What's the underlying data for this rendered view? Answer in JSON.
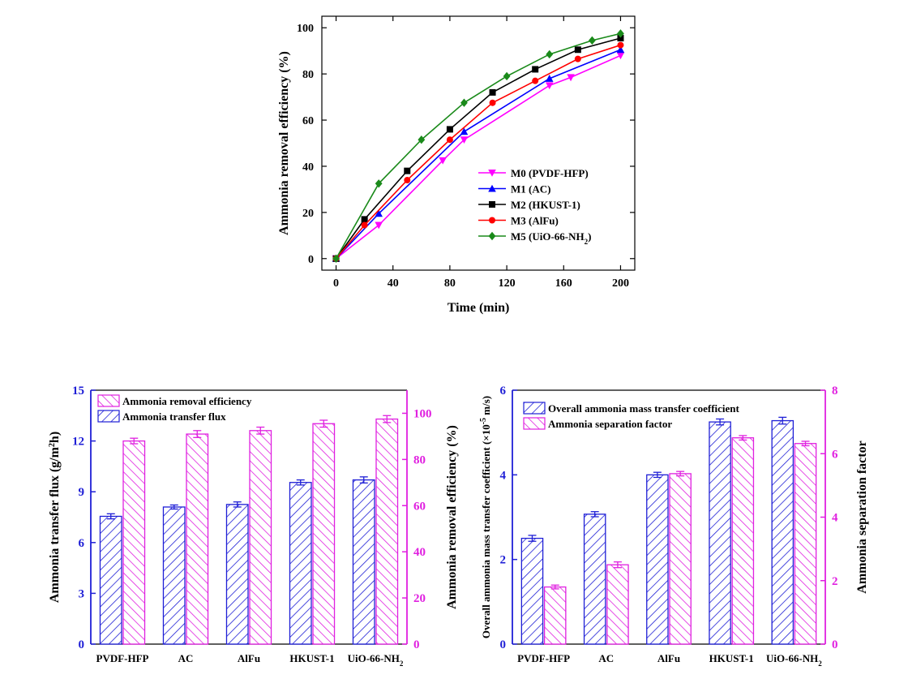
{
  "colors": {
    "M0": "#ff00ff",
    "M1": "#0000ff",
    "M2": "#000000",
    "M3": "#ff0000",
    "M5": "#1a8a1a",
    "blue": "#1f1fd6",
    "magenta": "#e020e0"
  },
  "chart_data": [
    {
      "type": "line",
      "xlabel": "Time (min)",
      "ylabel": "Ammonia removal efficiency (%)",
      "xlim": [
        -10,
        210
      ],
      "ylim": [
        -5,
        105
      ],
      "xticks": [
        0,
        40,
        80,
        120,
        160,
        200
      ],
      "yticks": [
        0,
        20,
        40,
        60,
        80,
        100
      ],
      "legend_position": "lower-right",
      "series": [
        {
          "key": "M0",
          "name": "M0 (PVDF-HFP)",
          "marker": "triangle-down",
          "x": [
            0,
            30,
            75,
            90,
            150,
            165,
            200
          ],
          "y": [
            0,
            14.5,
            42.5,
            51.5,
            75,
            78.5,
            88
          ]
        },
        {
          "key": "M1",
          "name": "M1 (AC)",
          "marker": "triangle-up",
          "x": [
            0,
            30,
            90,
            150,
            200
          ],
          "y": [
            0,
            19.5,
            55,
            78,
            90.5
          ]
        },
        {
          "key": "M2",
          "name": "M2 (HKUST-1)",
          "marker": "square",
          "x": [
            0,
            20,
            50,
            80,
            110,
            140,
            170,
            200
          ],
          "y": [
            0,
            17,
            38,
            56,
            72,
            82,
            90.5,
            95.5
          ]
        },
        {
          "key": "M3",
          "name": "M3 (AlFu)",
          "marker": "circle",
          "x": [
            0,
            20,
            50,
            80,
            110,
            140,
            170,
            200
          ],
          "y": [
            0,
            14.5,
            34,
            51.5,
            67.5,
            77,
            86.5,
            92.5
          ]
        },
        {
          "key": "M5",
          "name": "M5 (UiO-66-NH",
          "name_sub": "2",
          "name_end": ")",
          "marker": "diamond",
          "x": [
            0,
            30,
            60,
            90,
            120,
            150,
            180,
            200
          ],
          "y": [
            0,
            32.5,
            51.5,
            67.5,
            79,
            88.5,
            94.5,
            97.5
          ]
        }
      ]
    },
    {
      "type": "bar",
      "categories": [
        "PVDF-HFP",
        "AC",
        "AlFu",
        "HKUST-1",
        "UiO-66-NH"
      ],
      "last_category_subscript": "2",
      "ylabel_left": "Ammonia transfer flux (g/m",
      "ylabel_left_sup": "2",
      "ylabel_left_end": "h)",
      "ylabel_right": "Ammonia removal efficiency (%)",
      "ylim_left": [
        0,
        15
      ],
      "yticks_left": [
        0,
        3,
        6,
        9,
        12,
        15
      ],
      "ylim_right": [
        0,
        110
      ],
      "yticks_right": [
        0,
        20,
        40,
        60,
        80,
        100
      ],
      "legend_position": "top-left",
      "series": [
        {
          "name": "Ammonia transfer flux",
          "axis": "left",
          "color_key": "blue",
          "values": [
            7.55,
            8.1,
            8.25,
            9.55,
            9.7
          ],
          "errors": [
            0.15,
            0.12,
            0.15,
            0.15,
            0.18
          ]
        },
        {
          "name": "Ammonia removal efficiency",
          "axis": "right",
          "color_key": "magenta",
          "values": [
            88,
            91,
            92.5,
            95.5,
            97.5
          ],
          "errors": [
            1.2,
            1.5,
            1.5,
            1.5,
            1.5
          ]
        }
      ],
      "legend_order": [
        1,
        0
      ]
    },
    {
      "type": "bar",
      "categories": [
        "PVDF-HFP",
        "AC",
        "AlFu",
        "HKUST-1",
        "UiO-66-NH"
      ],
      "last_category_subscript": "2",
      "ylabel_left": "Overall ammonia mass transfer coefficient (×10",
      "ylabel_left_sup": "-5",
      "ylabel_left_end": " m/s)",
      "ylabel_right": "Ammonia separation factor",
      "ylim_left": [
        0,
        6
      ],
      "yticks_left": [
        0,
        2,
        4,
        6
      ],
      "ylim_right": [
        0,
        8
      ],
      "yticks_right": [
        0,
        2,
        4,
        6,
        8
      ],
      "legend_position": "top-left",
      "series": [
        {
          "name": "Overall ammonia mass transfer coefficient",
          "axis": "left",
          "color_key": "blue",
          "values": [
            2.5,
            3.07,
            4.0,
            5.25,
            5.28
          ],
          "errors": [
            0.07,
            0.06,
            0.06,
            0.07,
            0.08
          ]
        },
        {
          "name": "Ammonia separation factor",
          "axis": "right",
          "color_key": "magenta",
          "values": [
            1.8,
            2.5,
            5.37,
            6.5,
            6.32
          ],
          "errors": [
            0.06,
            0.09,
            0.07,
            0.07,
            0.07
          ]
        }
      ],
      "legend_order": [
        0,
        1
      ]
    }
  ]
}
